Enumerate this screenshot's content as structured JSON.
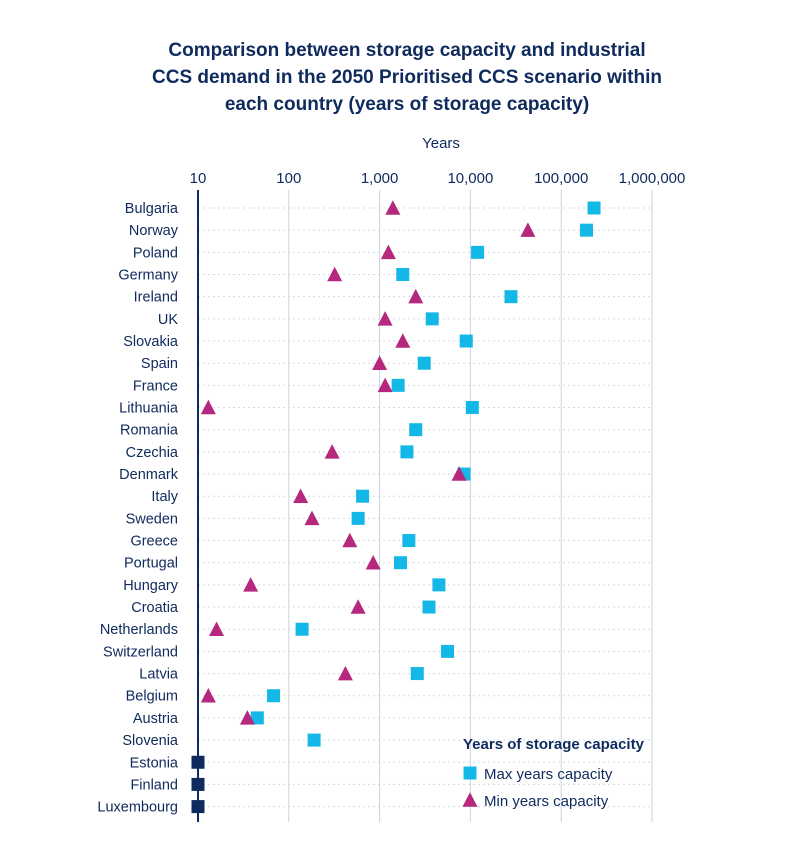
{
  "chart_data": {
    "type": "scatter",
    "title_lines": [
      "Comparison between storage capacity and industrial",
      "CCS demand in the 2050 Prioritised CCS scenario within",
      "each country (years of storage capacity)"
    ],
    "xlabel": "Years",
    "x_scale": "log",
    "xlim": [
      10,
      1000000
    ],
    "x_ticks": [
      {
        "value": 10,
        "label": "10"
      },
      {
        "value": 100,
        "label": "100"
      },
      {
        "value": 1000,
        "label": "1,000"
      },
      {
        "value": 10000,
        "label": "10,000"
      },
      {
        "value": 100000,
        "label": "100,000"
      },
      {
        "value": 1000000,
        "label": "1,000,000"
      }
    ],
    "grid": true,
    "categories": [
      "Bulgaria",
      "Norway",
      "Poland",
      "Germany",
      "Ireland",
      "UK",
      "Slovakia",
      "Spain",
      "France",
      "Lithuania",
      "Romania",
      "Czechia",
      "Denmark",
      "Italy",
      "Sweden",
      "Greece",
      "Portugal",
      "Hungary",
      "Croatia",
      "Netherlands",
      "Switzerland",
      "Latvia",
      "Belgium",
      "Austria",
      "Slovenia",
      "Estonia",
      "Finland",
      "Luxembourg"
    ],
    "series": [
      {
        "name": "Max years capacity",
        "marker": "square",
        "color": "#14b8e6",
        "values": [
          230000,
          190000,
          12000,
          1800,
          28000,
          3800,
          9000,
          3100,
          1600,
          10500,
          2500,
          2000,
          8500,
          650,
          580,
          2100,
          1700,
          4500,
          3500,
          140,
          5600,
          2600,
          68,
          45,
          190,
          null,
          null,
          null
        ]
      },
      {
        "name": "Min years capacity",
        "marker": "triangle",
        "color": "#b5287d",
        "values": [
          1400,
          43000,
          1250,
          320,
          2500,
          1150,
          1800,
          1000,
          1150,
          13,
          null,
          300,
          7500,
          135,
          180,
          470,
          850,
          38,
          580,
          16,
          null,
          420,
          13,
          35,
          null,
          null,
          null,
          null
        ]
      },
      {
        "marker": "square",
        "color": "#0f2a5c",
        "values": [
          null,
          null,
          null,
          null,
          null,
          null,
          null,
          null,
          null,
          null,
          null,
          null,
          null,
          null,
          null,
          null,
          null,
          null,
          null,
          null,
          null,
          null,
          null,
          null,
          null,
          10,
          10,
          10
        ]
      }
    ],
    "legend": {
      "title": "Years of storage capacity",
      "placement": "bottom-right",
      "items": [
        {
          "label": "Max years capacity",
          "marker": "square",
          "color": "#14b8e6"
        },
        {
          "label": "Min years capacity",
          "marker": "triangle",
          "color": "#b5287d"
        }
      ]
    },
    "colors": {
      "text": "#0f2a5c",
      "grid": "#c9d3e3",
      "axis": "#0f2a5c"
    }
  }
}
